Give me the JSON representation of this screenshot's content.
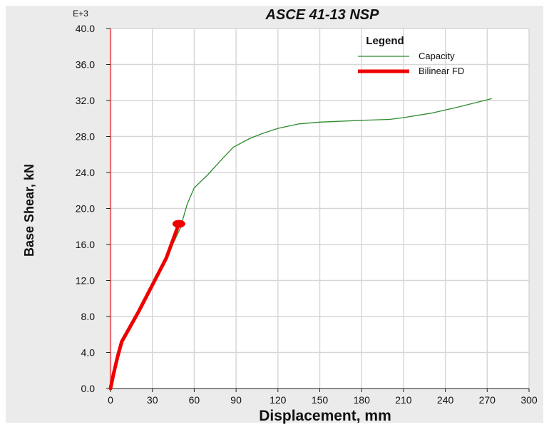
{
  "chart_data": {
    "type": "line",
    "title": "ASCE 41-13 NSP",
    "xlabel": "Displacement, mm",
    "ylabel": "Base Shear, kN",
    "y_multiplier_label": "E+3",
    "xlim": [
      0,
      300
    ],
    "ylim": [
      0,
      40
    ],
    "x_ticks": [
      0,
      30,
      60,
      90,
      120,
      150,
      180,
      210,
      240,
      270,
      300
    ],
    "y_ticks": [
      0,
      4,
      8,
      12,
      16,
      20,
      24,
      28,
      32,
      36,
      40
    ],
    "x_tick_labels": [
      "0",
      "30",
      "60",
      "90",
      "120",
      "150",
      "180",
      "210",
      "240",
      "270",
      "300"
    ],
    "y_tick_labels": [
      "0.0",
      "4.0",
      "8.0",
      "12.0",
      "16.0",
      "20.0",
      "24.0",
      "28.0",
      "32.0",
      "36.0",
      "40.0"
    ],
    "grid": true,
    "legend": {
      "title": "Legend",
      "placement": "top-right"
    },
    "series": [
      {
        "name": "Capacity",
        "color": "#2e8b2e",
        "x": [
          0,
          2,
          5,
          8,
          20,
          40,
          50,
          55,
          60,
          70,
          80,
          88,
          100,
          110,
          120,
          135,
          150,
          180,
          200,
          210,
          230,
          250,
          273
        ],
        "y": [
          0,
          1.5,
          3.5,
          5.2,
          8.5,
          14.5,
          17.8,
          20.5,
          22.3,
          23.8,
          25.5,
          26.8,
          27.8,
          28.4,
          28.9,
          29.4,
          29.6,
          29.8,
          29.9,
          30.1,
          30.6,
          31.3,
          32.2
        ]
      },
      {
        "name": "Bilinear FD",
        "color": "#ee0000",
        "x": [
          0,
          2,
          5,
          8,
          20,
          40,
          49
        ],
        "y": [
          0,
          1.5,
          3.5,
          5.2,
          8.5,
          14.5,
          18.3
        ]
      }
    ],
    "markers": [
      {
        "series": "Bilinear FD",
        "x": 49,
        "y": 18.3,
        "color": "#ee0000"
      }
    ],
    "reference_lines": [
      {
        "axis": "x",
        "value": 0,
        "color": "#f07070"
      }
    ]
  }
}
